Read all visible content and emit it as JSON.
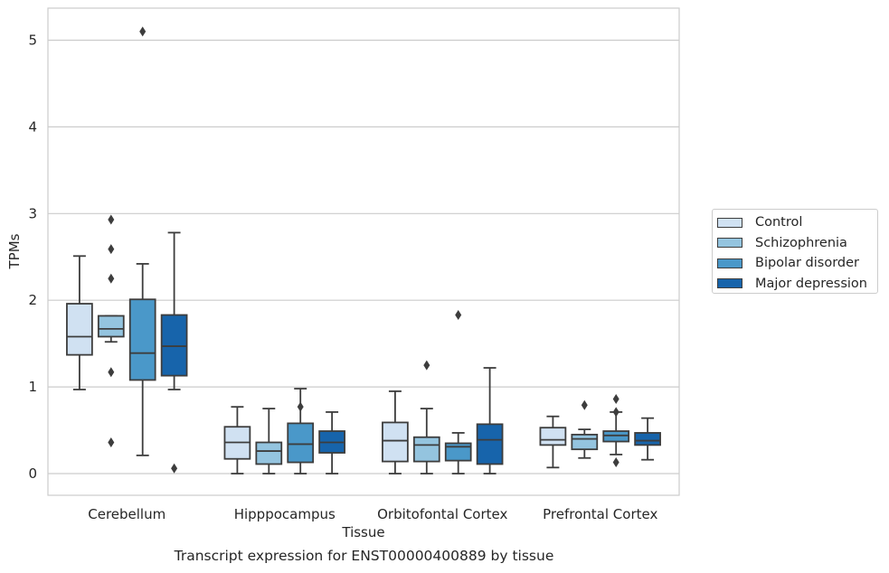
{
  "chart_data": {
    "type": "box",
    "xlabel": "Tissue",
    "ylabel": "TPMs",
    "caption": "Transcript expression for ENST00000400889 by tissue",
    "ylim": [
      -0.25,
      5.37
    ],
    "yticks": [
      0,
      1,
      2,
      3,
      4,
      5
    ],
    "grid": "horizontal",
    "legend_position": "right",
    "categories": [
      "Cerebellum",
      "Hipppocampus",
      "Orbitofontal Cortex",
      "Prefrontal Cortex"
    ],
    "series": [
      {
        "name": "Control",
        "color": "#d0e1f2",
        "boxes": [
          {
            "whislo": 0.97,
            "q1": 1.37,
            "med": 1.58,
            "q3": 1.96,
            "whishi": 2.51,
            "fliers": []
          },
          {
            "whislo": 0.0,
            "q1": 0.17,
            "med": 0.36,
            "q3": 0.54,
            "whishi": 0.77,
            "fliers": []
          },
          {
            "whislo": 0.0,
            "q1": 0.14,
            "med": 0.38,
            "q3": 0.59,
            "whishi": 0.95,
            "fliers": []
          },
          {
            "whislo": 0.07,
            "q1": 0.33,
            "med": 0.39,
            "q3": 0.53,
            "whishi": 0.66,
            "fliers": []
          }
        ]
      },
      {
        "name": "Schizophrenia",
        "color": "#94c4df",
        "boxes": [
          {
            "whislo": 1.52,
            "q1": 1.58,
            "med": 1.67,
            "q3": 1.82,
            "whishi": 1.82,
            "fliers": [
              2.93,
              2.59,
              2.25,
              1.17,
              0.36
            ]
          },
          {
            "whislo": 0.0,
            "q1": 0.11,
            "med": 0.26,
            "q3": 0.36,
            "whishi": 0.75,
            "fliers": []
          },
          {
            "whislo": 0.0,
            "q1": 0.14,
            "med": 0.33,
            "q3": 0.42,
            "whishi": 0.75,
            "fliers": [
              1.25
            ]
          },
          {
            "whislo": 0.18,
            "q1": 0.28,
            "med": 0.4,
            "q3": 0.45,
            "whishi": 0.51,
            "fliers": [
              0.79
            ]
          }
        ]
      },
      {
        "name": "Bipolar disorder",
        "color": "#4a98c9",
        "boxes": [
          {
            "whislo": 0.21,
            "q1": 1.08,
            "med": 1.39,
            "q3": 2.01,
            "whishi": 2.42,
            "fliers": [
              5.1
            ]
          },
          {
            "whislo": 0.0,
            "q1": 0.13,
            "med": 0.34,
            "q3": 0.58,
            "whishi": 0.98,
            "fliers": [
              0.77
            ]
          },
          {
            "whislo": 0.0,
            "q1": 0.15,
            "med": 0.31,
            "q3": 0.35,
            "whishi": 0.47,
            "fliers": [
              1.83
            ]
          },
          {
            "whislo": 0.22,
            "q1": 0.37,
            "med": 0.44,
            "q3": 0.49,
            "whishi": 0.71,
            "fliers": [
              0.86,
              0.71,
              0.13
            ]
          }
        ]
      },
      {
        "name": "Major depression",
        "color": "#1764ab",
        "boxes": [
          {
            "whislo": 0.97,
            "q1": 1.13,
            "med": 1.47,
            "q3": 1.83,
            "whishi": 2.78,
            "fliers": [
              0.06
            ]
          },
          {
            "whislo": 0.0,
            "q1": 0.24,
            "med": 0.36,
            "q3": 0.49,
            "whishi": 0.71,
            "fliers": []
          },
          {
            "whislo": 0.0,
            "q1": 0.11,
            "med": 0.39,
            "q3": 0.57,
            "whishi": 1.22,
            "fliers": []
          },
          {
            "whislo": 0.16,
            "q1": 0.33,
            "med": 0.38,
            "q3": 0.47,
            "whishi": 0.64,
            "fliers": []
          }
        ]
      }
    ]
  },
  "colors": {
    "grid": "#cccccc",
    "frame": "#cccccc",
    "box_edge": "#3d3d3d",
    "text": "#262626"
  }
}
